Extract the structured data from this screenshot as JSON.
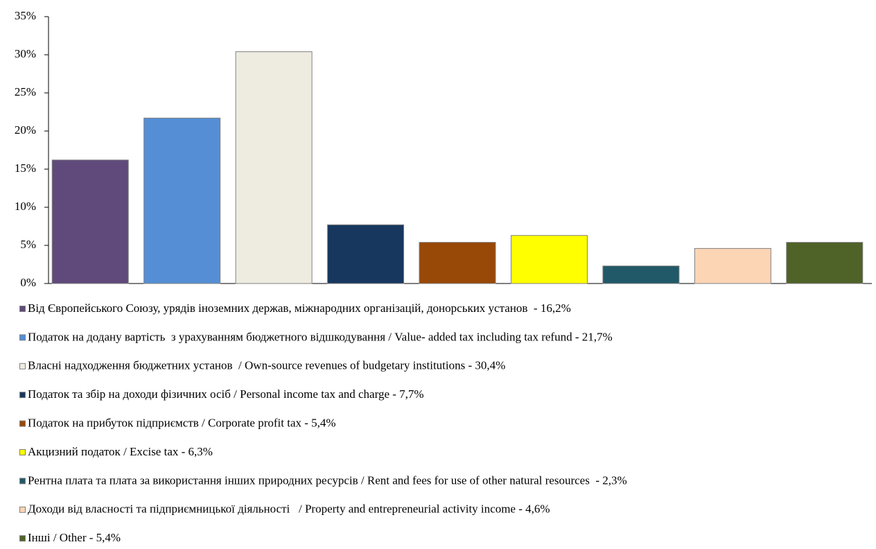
{
  "chart_data": {
    "type": "bar",
    "categories": [
      null
    ],
    "ylim": [
      0,
      35
    ],
    "yticks": [
      {
        "value": 0,
        "label": "0%"
      },
      {
        "value": 5,
        "label": "5%"
      },
      {
        "value": 10,
        "label": "10%"
      },
      {
        "value": 15,
        "label": "15%"
      },
      {
        "value": 20,
        "label": "20%"
      },
      {
        "value": 25,
        "label": "25%"
      },
      {
        "value": 30,
        "label": "30%"
      },
      {
        "value": 35,
        "label": "35%"
      }
    ],
    "series": [
      {
        "name": "Від Європейського Союзу, урядів іноземних держав, міжнародних організацій, донорських установ  - 16,2%",
        "color": "#604a7b",
        "values": [
          16.2
        ]
      },
      {
        "name": "Податок на додану вартість  з урахуванням бюджетного відшкодування / Value- added tax including tax refund - 21,7%",
        "color": "#558ed5",
        "values": [
          21.7
        ]
      },
      {
        "name": "Власні надходження бюджетних установ  / Own-source revenues of budgetary institutions - 30,4%",
        "color": "#eeece1",
        "values": [
          30.4
        ]
      },
      {
        "name": "Податок та збір на доходи фізичних осіб / Personal income tax and charge - 7,7%",
        "color": "#17375e",
        "values": [
          7.7
        ]
      },
      {
        "name": "Податок на прибуток підприємств / Corporate profit tax - 5,4%",
        "color": "#984807",
        "values": [
          5.4
        ]
      },
      {
        "name": "Акцизний податок / Excise tax - 6,3%",
        "color": "#ffff00",
        "values": [
          6.3
        ]
      },
      {
        "name": "Рентна плата та плата за використання інших природних ресурсів / Rent and fees for use of other natural resources  - 2,3%",
        "color": "#215968",
        "values": [
          2.3
        ]
      },
      {
        "name": "Доходи від власності та підприємницької діяльності   / Property and entrepreneurial activity income - 4,6%",
        "color": "#fcd5b5",
        "values": [
          4.6
        ]
      },
      {
        "name": "Інші / Other - 5,4%",
        "color": "#4f6228",
        "values": [
          5.4
        ]
      }
    ]
  }
}
